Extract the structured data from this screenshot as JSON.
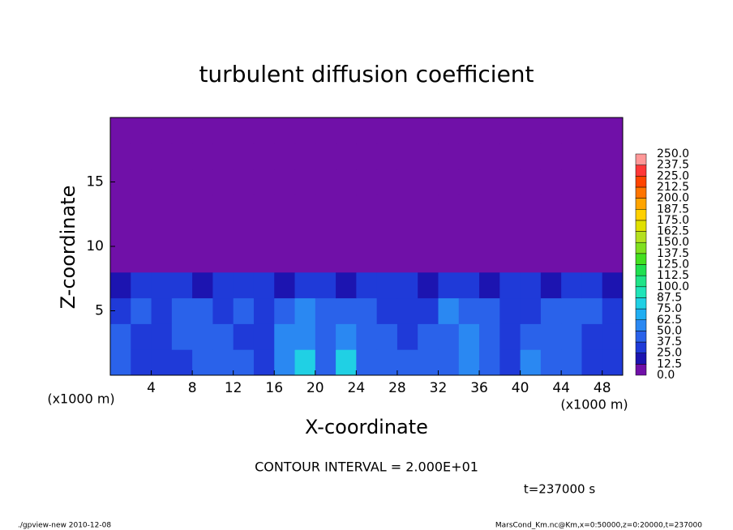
{
  "chart_data": {
    "type": "heatmap",
    "title": "turbulent diffusion coefficient",
    "xlabel": "X-coordinate",
    "ylabel": "Z-coordinate",
    "x_unit_labels": [
      "(x1000 m)",
      "(x1000 m)"
    ],
    "xlim": [
      0,
      50
    ],
    "xticks": [
      4,
      8,
      12,
      16,
      20,
      24,
      28,
      32,
      36,
      40,
      44,
      48
    ],
    "ylim": [
      0,
      20
    ],
    "yticks": [
      5,
      10,
      15
    ],
    "x": [
      1,
      3,
      5,
      7,
      9,
      11,
      13,
      15,
      17,
      19,
      21,
      23,
      25,
      27,
      29,
      31,
      33,
      35,
      37,
      39,
      41,
      43,
      45,
      47,
      49
    ],
    "y": [
      1,
      3,
      5,
      7,
      9,
      11,
      13,
      15,
      17,
      19
    ],
    "z": [
      [
        40,
        35,
        30,
        35,
        40,
        45,
        38,
        35,
        55,
        80,
        40,
        75,
        45,
        40,
        38,
        42,
        40,
        60,
        40,
        35,
        55,
        40,
        45,
        30,
        35
      ],
      [
        38,
        30,
        35,
        40,
        45,
        40,
        30,
        35,
        50,
        60,
        38,
        55,
        45,
        40,
        35,
        38,
        45,
        50,
        45,
        30,
        40,
        45,
        40,
        35,
        30
      ],
      [
        35,
        40,
        30,
        45,
        40,
        35,
        40,
        30,
        45,
        50,
        40,
        45,
        40,
        35,
        30,
        35,
        50,
        45,
        40,
        35,
        30,
        40,
        45,
        40,
        35
      ],
      [
        20,
        25,
        30,
        25,
        20,
        25,
        30,
        25,
        20,
        30,
        25,
        20,
        25,
        30,
        25,
        20,
        30,
        25,
        20,
        30,
        25,
        20,
        25,
        30,
        20
      ],
      [
        0,
        0,
        0,
        0,
        0,
        0,
        0,
        0,
        0,
        0,
        0,
        0,
        0,
        0,
        0,
        0,
        0,
        0,
        0,
        0,
        0,
        0,
        0,
        0,
        0
      ],
      [
        0,
        0,
        0,
        0,
        0,
        0,
        0,
        0,
        0,
        0,
        0,
        0,
        0,
        0,
        0,
        0,
        0,
        0,
        0,
        0,
        0,
        0,
        0,
        0,
        0
      ],
      [
        0,
        0,
        0,
        0,
        0,
        0,
        0,
        0,
        0,
        0,
        0,
        0,
        0,
        0,
        0,
        0,
        0,
        0,
        0,
        0,
        0,
        0,
        0,
        0,
        0
      ],
      [
        0,
        0,
        0,
        0,
        0,
        0,
        0,
        0,
        0,
        0,
        0,
        0,
        0,
        0,
        0,
        0,
        0,
        0,
        0,
        0,
        0,
        0,
        0,
        0,
        0
      ],
      [
        0,
        0,
        0,
        0,
        0,
        0,
        0,
        0,
        0,
        0,
        0,
        0,
        0,
        0,
        0,
        0,
        0,
        0,
        0,
        0,
        0,
        0,
        0,
        0,
        0
      ],
      [
        0,
        0,
        0,
        0,
        0,
        0,
        0,
        0,
        0,
        0,
        0,
        0,
        0,
        0,
        0,
        0,
        0,
        0,
        0,
        0,
        0,
        0,
        0,
        0,
        0
      ]
    ],
    "levels": [
      {
        "value": 0,
        "label": "0.0"
      },
      {
        "value": 12.5,
        "label": "12.5"
      },
      {
        "value": 25,
        "label": "25.0"
      },
      {
        "value": 37.5,
        "label": "37.5"
      },
      {
        "value": 50,
        "label": "50.0"
      },
      {
        "value": 62.5,
        "label": "62.5"
      },
      {
        "value": 75,
        "label": "75.0"
      },
      {
        "value": 87.5,
        "label": "87.5"
      },
      {
        "value": 100,
        "label": "100.0"
      },
      {
        "value": 112.5,
        "label": "112.5"
      },
      {
        "value": 125,
        "label": "125.0"
      },
      {
        "value": 137.5,
        "label": "137.5"
      },
      {
        "value": 150,
        "label": "150.0"
      },
      {
        "value": 162.5,
        "label": "162.5"
      },
      {
        "value": 175,
        "label": "175.0"
      },
      {
        "value": 187.5,
        "label": "187.5"
      },
      {
        "value": 200,
        "label": "200.0"
      },
      {
        "value": 212.5,
        "label": "212.5"
      },
      {
        "value": 225,
        "label": "225.0"
      },
      {
        "value": 237.5,
        "label": "237.5"
      },
      {
        "value": 250,
        "label": "250.0"
      }
    ],
    "colors": [
      "#7010a8",
      "#1c14b0",
      "#1f3ad8",
      "#2a62ea",
      "#2a88f2",
      "#20aef2",
      "#20d0e4",
      "#20e4b8",
      "#20e488",
      "#20e050",
      "#44e020",
      "#80e020",
      "#b4e020",
      "#e0e000",
      "#ffd000",
      "#ffa400",
      "#ff7400",
      "#ff4400",
      "#ff3838",
      "#ff9898"
    ],
    "annotations": [
      "CONTOUR INTERVAL = 2.000E+01",
      "t=237000 s"
    ],
    "footer": [
      "./gpview-new  2010-12-08",
      "MarsCond_Km.nc@Km,x=0:50000,z=0:20000,t=237000"
    ]
  }
}
